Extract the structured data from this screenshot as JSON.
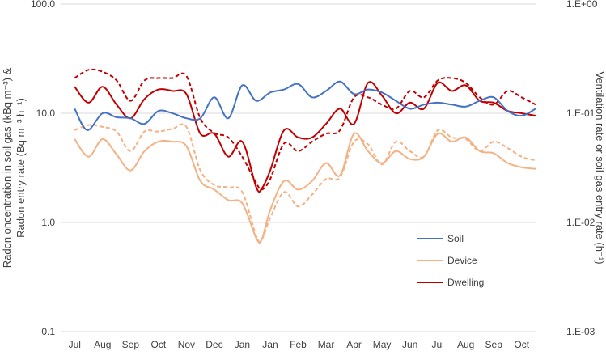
{
  "chart_data": {
    "type": "line",
    "x": [
      "Jul",
      "Aug",
      "Sep",
      "Oct",
      "Nov",
      "Dec",
      "Jan",
      "Jan",
      "Feb",
      "Mar",
      "Apr",
      "May",
      "Jun",
      "Jul",
      "Aug",
      "Sep",
      "Oct"
    ],
    "y_left": {
      "scale": "log",
      "ylim": [
        0.1,
        100
      ],
      "ticks": [
        "100.0",
        "10.0",
        "1.0",
        "0.1"
      ],
      "label_line1": "Radon oncentration in soil gas (kBq m⁻³) &",
      "label_line2": "Radon entry rate (Bq m⁻³ h⁻¹)"
    },
    "y_right": {
      "scale": "log",
      "ylim": [
        0.001,
        1
      ],
      "ticks": [
        "1.E+00",
        "1.E-01",
        "1.E-02",
        "1.E-03"
      ],
      "label": "Ventilation rate  or soil gas entry rate (h⁻¹)"
    },
    "legend": {
      "position": "lower-right",
      "items": [
        "Soil",
        "Device",
        "Dwelling"
      ]
    },
    "series": [
      {
        "name": "Soil",
        "axis": "left",
        "style": "solid",
        "color": "#4472c4",
        "x": [
          0,
          0.45,
          1,
          1.5,
          2,
          2.5,
          3,
          3.5,
          4,
          4.5,
          5,
          5.5,
          6,
          6.5,
          7,
          7.5,
          8,
          8.5,
          9,
          9.5,
          10,
          10.5,
          11,
          11.5,
          12,
          12.5,
          13,
          13.5,
          14,
          14.5,
          15,
          15.5,
          16,
          16.5
        ],
        "values": [
          11,
          7,
          10,
          9.2,
          9,
          8,
          10.5,
          10,
          9,
          9,
          14,
          9,
          18,
          13,
          15.5,
          16.5,
          18.5,
          14,
          16,
          19.5,
          15,
          16.5,
          15.5,
          13,
          11,
          12,
          12.5,
          12,
          11.5,
          13,
          14,
          10.5,
          9.5,
          11
        ]
      },
      {
        "name": "Device",
        "axis": "left",
        "style": "solid",
        "color": "#f4b183",
        "x": [
          0,
          0.5,
          1,
          1.5,
          2,
          2.5,
          3,
          3.5,
          4,
          4.5,
          5,
          5.5,
          6,
          6.5,
          6.7,
          7,
          7.5,
          8,
          8.5,
          9,
          9.5,
          10,
          10.5,
          11,
          11.5,
          12,
          12.5,
          13,
          13.5,
          14,
          14.5,
          15,
          15.5,
          16,
          16.5
        ],
        "values": [
          5.8,
          4,
          5.8,
          4.2,
          3,
          4.5,
          5.5,
          5.5,
          5,
          2.4,
          2.0,
          1.6,
          1.5,
          0.72,
          0.7,
          1.3,
          2.4,
          2,
          2.4,
          3.5,
          2.7,
          6.5,
          4.5,
          3.5,
          4.5,
          3.8,
          4,
          6.5,
          5.5,
          6,
          4.5,
          4.3,
          3.5,
          3.2,
          3.1
        ]
      },
      {
        "name": "Device (ventilation rate)",
        "axis": "right",
        "style": "dashed",
        "color": "#f4b183",
        "x": [
          0,
          0.5,
          1,
          1.5,
          2,
          2.5,
          3,
          3.5,
          4,
          4.5,
          5,
          5.5,
          6,
          6.5,
          6.7,
          7,
          7.5,
          8,
          8.5,
          9,
          9.5,
          10,
          10.5,
          11,
          11.5,
          12,
          12.5,
          13,
          13.5,
          14,
          14.5,
          15,
          15.5,
          16,
          16.5
        ],
        "values": [
          0.07,
          0.078,
          0.075,
          0.068,
          0.045,
          0.068,
          0.068,
          0.072,
          0.075,
          0.03,
          0.022,
          0.021,
          0.019,
          0.0075,
          0.007,
          0.011,
          0.019,
          0.014,
          0.018,
          0.025,
          0.026,
          0.055,
          0.052,
          0.034,
          0.055,
          0.045,
          0.04,
          0.07,
          0.06,
          0.058,
          0.045,
          0.055,
          0.048,
          0.04,
          0.037
        ]
      },
      {
        "name": "Dwelling",
        "axis": "left",
        "style": "solid",
        "color": "#c00000",
        "x": [
          0,
          0.5,
          1,
          1.5,
          2,
          2.5,
          3,
          3.5,
          4,
          4.5,
          5,
          5.5,
          6,
          6.5,
          6.7,
          7,
          7.5,
          8,
          8.5,
          9,
          9.5,
          10,
          10.5,
          11,
          11.5,
          12,
          12.5,
          13,
          13.5,
          14,
          14.5,
          15,
          15.5,
          16,
          16.5
        ],
        "values": [
          17.5,
          12.5,
          17.5,
          12,
          9,
          13.5,
          16.5,
          16,
          15,
          6.5,
          6.5,
          4,
          5.5,
          2.1,
          2.05,
          3,
          7,
          6,
          6,
          8,
          11,
          8,
          19,
          14.5,
          10,
          12.5,
          11,
          19,
          16,
          18,
          13,
          12.5,
          10.5,
          10,
          9.5
        ]
      },
      {
        "name": "Dwelling (ventilation rate)",
        "axis": "right",
        "style": "dashed",
        "color": "#c00000",
        "x": [
          0,
          0.5,
          1,
          1.5,
          2,
          2.5,
          3,
          3.5,
          4,
          4.5,
          5,
          5.5,
          6,
          6.5,
          6.7,
          7,
          7.5,
          8,
          8.5,
          9,
          9.5,
          10,
          10.5,
          11,
          11.5,
          12,
          12.5,
          13,
          13.5,
          14,
          14.5,
          15,
          15.5,
          16,
          16.5
        ],
        "values": [
          0.21,
          0.25,
          0.24,
          0.2,
          0.13,
          0.2,
          0.21,
          0.21,
          0.22,
          0.09,
          0.066,
          0.06,
          0.04,
          0.023,
          0.02,
          0.025,
          0.053,
          0.045,
          0.055,
          0.065,
          0.07,
          0.14,
          0.14,
          0.12,
          0.11,
          0.16,
          0.14,
          0.2,
          0.21,
          0.19,
          0.14,
          0.12,
          0.16,
          0.14,
          0.12
        ]
      }
    ]
  }
}
